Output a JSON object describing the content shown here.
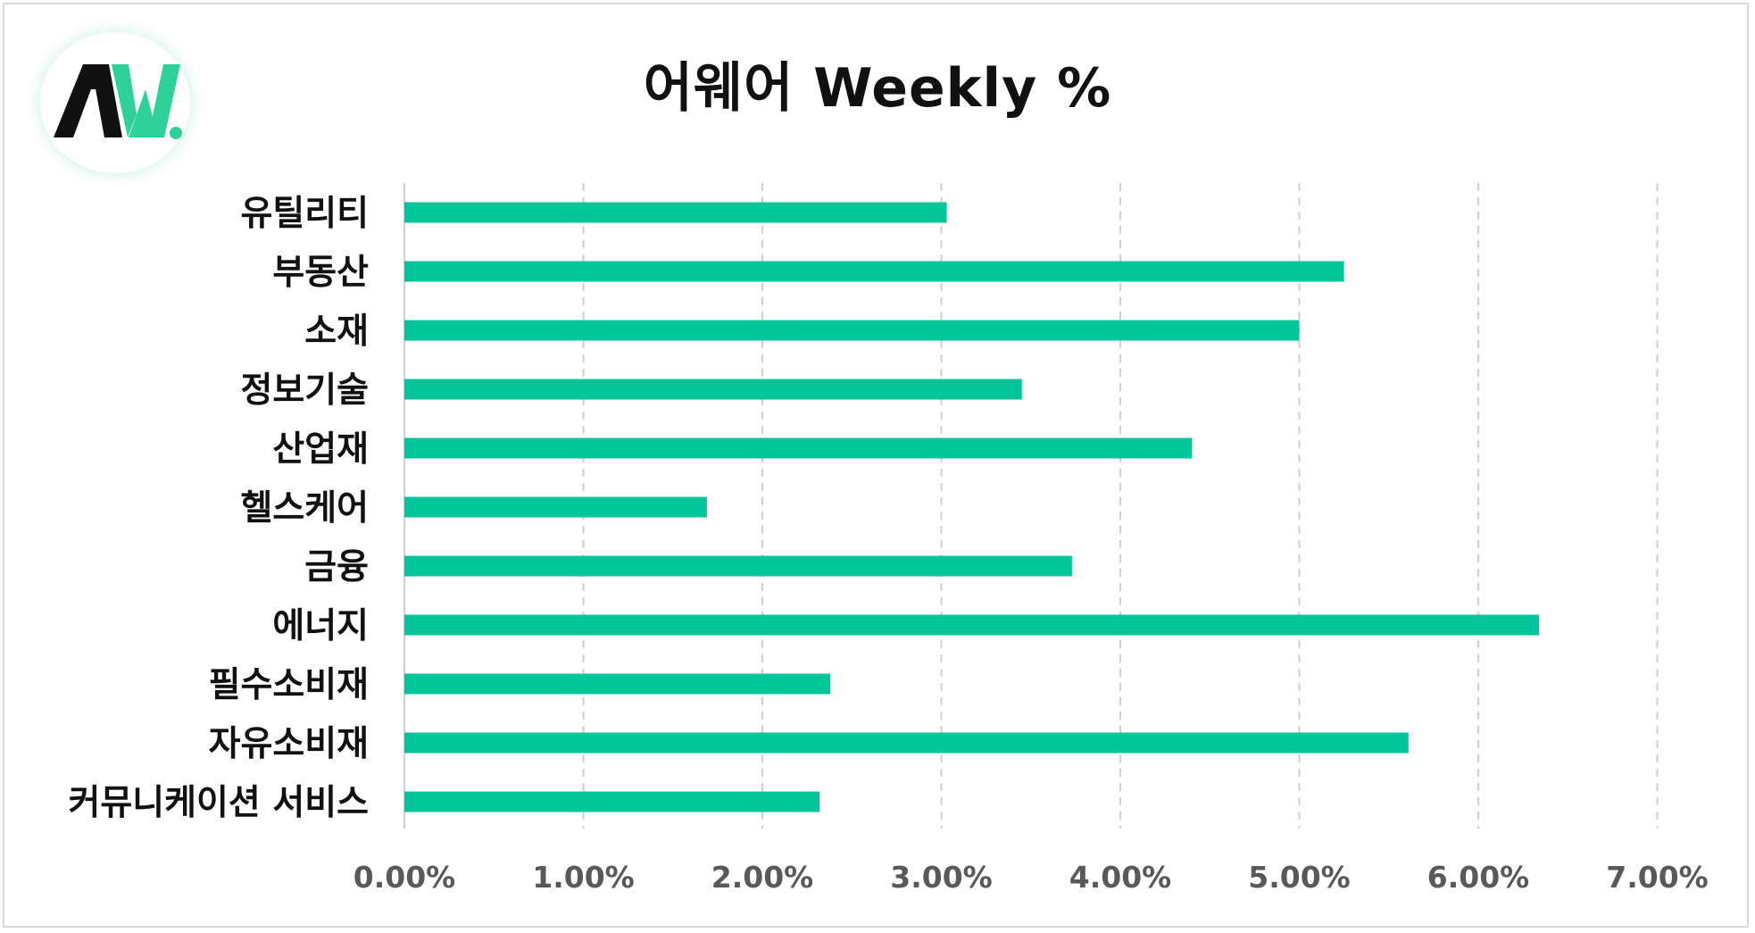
{
  "logo": {
    "text": "AW.",
    "colors": {
      "dark": "#111111",
      "accent": "#2fd19a"
    }
  },
  "chart_data": {
    "type": "bar",
    "orientation": "horizontal",
    "title": "어웨어 Weekly %",
    "categories": [
      "유틸리티",
      "부동산",
      "소재",
      "정보기술",
      "산업재",
      "헬스케어",
      "금융",
      "에너지",
      "필수소비재",
      "자유소비재",
      "커뮤니케이션 서비스"
    ],
    "values": [
      3.03,
      5.25,
      5.0,
      3.45,
      4.4,
      1.69,
      3.73,
      6.34,
      2.38,
      5.61,
      2.32
    ],
    "xlim": [
      0,
      7
    ],
    "x_ticks": [
      "0.00%",
      "1.00%",
      "2.00%",
      "3.00%",
      "4.00%",
      "5.00%",
      "6.00%",
      "7.00%"
    ],
    "grid": "vertical dashed",
    "legend": "none",
    "bar_color": "#00c49a"
  }
}
